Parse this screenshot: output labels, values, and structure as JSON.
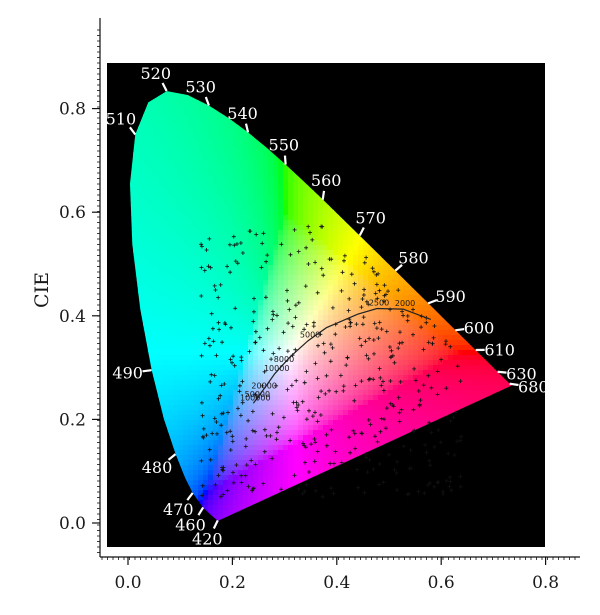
{
  "chart_data": {
    "type": "scatter",
    "title": "",
    "xlabel": "",
    "ylabel": "CIE",
    "xlim": [
      -0.05,
      0.8
    ],
    "ylim": [
      -0.05,
      0.95
    ],
    "x_ticks": [
      "0.0",
      "0.2",
      "0.4",
      "0.6",
      "0.8"
    ],
    "y_ticks": [
      "0.0",
      "0.2",
      "0.4",
      "0.6",
      "0.8"
    ],
    "grid": false,
    "background": "#000000",
    "spectral_locus": [
      {
        "label": "420",
        "x": 0.172,
        "y": 0.005
      },
      {
        "label": "460",
        "x": 0.144,
        "y": 0.03
      },
      {
        "label": "470",
        "x": 0.124,
        "y": 0.058
      },
      {
        "label": "480",
        "x": 0.091,
        "y": 0.133
      },
      {
        "label": "490",
        "x": 0.045,
        "y": 0.295
      },
      {
        "label": "510",
        "x": 0.014,
        "y": 0.75
      },
      {
        "label": "520",
        "x": 0.074,
        "y": 0.834
      },
      {
        "label": "530",
        "x": 0.155,
        "y": 0.806
      },
      {
        "label": "540",
        "x": 0.23,
        "y": 0.754
      },
      {
        "label": "550",
        "x": 0.302,
        "y": 0.692
      },
      {
        "label": "560",
        "x": 0.373,
        "y": 0.624
      },
      {
        "label": "570",
        "x": 0.444,
        "y": 0.555
      },
      {
        "label": "580",
        "x": 0.512,
        "y": 0.487
      },
      {
        "label": "590",
        "x": 0.575,
        "y": 0.424
      },
      {
        "label": "600",
        "x": 0.627,
        "y": 0.372
      },
      {
        "label": "610",
        "x": 0.666,
        "y": 0.334
      },
      {
        "label": "630",
        "x": 0.708,
        "y": 0.292
      },
      {
        "label": "680",
        "x": 0.731,
        "y": 0.269
      }
    ],
    "planckian_locus": [
      {
        "label": "2000",
        "x": 0.527,
        "y": 0.413
      },
      {
        "label": "2500",
        "x": 0.477,
        "y": 0.414
      },
      {
        "label": "5000",
        "x": 0.345,
        "y": 0.352
      },
      {
        "label": "8000",
        "x": 0.295,
        "y": 0.305
      },
      {
        "label": "10000",
        "x": 0.281,
        "y": 0.288
      },
      {
        "label": "20000",
        "x": 0.257,
        "y": 0.254
      },
      {
        "label": "50000",
        "x": 0.244,
        "y": 0.237
      },
      {
        "label": "100000",
        "x": 0.24,
        "y": 0.231
      }
    ],
    "markers": {
      "symbol": "+",
      "x_range": [
        0.14,
        0.64
      ],
      "y_range": [
        0.05,
        0.58
      ],
      "count": 520
    }
  }
}
